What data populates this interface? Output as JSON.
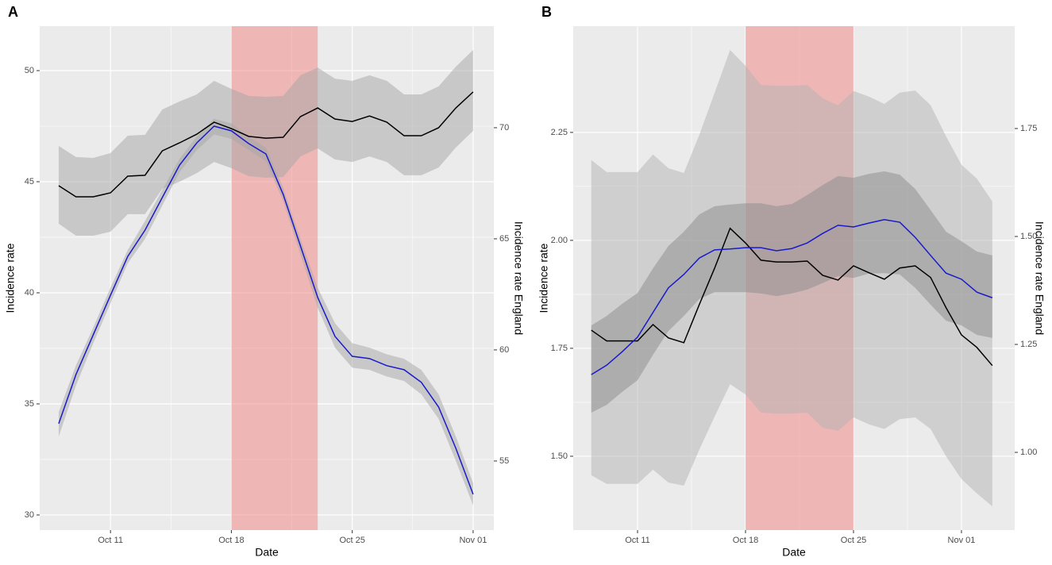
{
  "chart_data": [
    {
      "type": "line",
      "panel_label": "A",
      "xlabel": "Date",
      "ylabel": "Incidence rate",
      "y2label": "Incidence rate England",
      "x": [
        8,
        9,
        10,
        11,
        12,
        13,
        14,
        15,
        16,
        17,
        18,
        19,
        20,
        21,
        22,
        23,
        24,
        25,
        26,
        27,
        28,
        29,
        30,
        31,
        32
      ],
      "xlim": [
        6.9,
        33.2
      ],
      "xticks": [
        {
          "value": 11,
          "label": "Oct 11"
        },
        {
          "value": 18,
          "label": "Oct 18"
        },
        {
          "value": 25,
          "label": "Oct 25"
        },
        {
          "value": 32,
          "label": "Nov 01"
        }
      ],
      "ylim": [
        29.32,
        52.0
      ],
      "yticks": [
        30,
        35,
        40,
        45,
        50
      ],
      "y2lim": [
        51.89,
        74.57
      ],
      "y2ticks": [
        55,
        60,
        65,
        70
      ],
      "highlight": [
        18,
        23
      ],
      "highlight_color": "#f28b8b",
      "grid": true,
      "series": [
        {
          "color": "#000000",
          "band_color": "#a6a6a6",
          "values": [
            44.82,
            44.32,
            44.32,
            44.5,
            45.25,
            45.29,
            46.39,
            46.75,
            47.14,
            47.68,
            47.39,
            47.04,
            46.96,
            47.0,
            47.93,
            48.32,
            47.82,
            47.71,
            47.96,
            47.68,
            47.07,
            47.07,
            47.43,
            48.32,
            49.04
          ],
          "upper": [
            46.61,
            46.11,
            46.07,
            46.29,
            47.07,
            47.11,
            48.25,
            48.61,
            48.93,
            49.54,
            49.18,
            48.86,
            48.82,
            48.86,
            49.79,
            50.14,
            49.64,
            49.54,
            49.79,
            49.54,
            48.93,
            48.93,
            49.29,
            50.18,
            50.93
          ],
          "lower": [
            43.11,
            42.57,
            42.57,
            42.75,
            43.54,
            43.54,
            44.68,
            45.0,
            45.39,
            45.89,
            45.61,
            45.25,
            45.18,
            45.21,
            46.14,
            46.5,
            46.0,
            45.89,
            46.14,
            45.89,
            45.29,
            45.29,
            45.64,
            46.54,
            47.29
          ]
        },
        {
          "color": "#1a1acc",
          "band_color": "#a6a6a6",
          "axis": "y2",
          "values": [
            56.68,
            58.89,
            60.68,
            62.46,
            64.21,
            65.39,
            66.86,
            68.32,
            69.32,
            70.07,
            69.86,
            69.29,
            68.82,
            67.0,
            64.68,
            62.36,
            60.61,
            59.71,
            59.61,
            59.29,
            59.11,
            58.54,
            57.43,
            55.57,
            53.5
          ],
          "upper": [
            57.2,
            59.3,
            61.0,
            62.8,
            64.5,
            65.8,
            67.2,
            68.6,
            69.6,
            70.4,
            70.2,
            69.6,
            69.1,
            67.3,
            65.0,
            62.8,
            61.2,
            60.3,
            60.1,
            59.8,
            59.6,
            59.1,
            58.0,
            56.1,
            54.0
          ],
          "lower": [
            56.1,
            58.4,
            60.3,
            62.1,
            63.9,
            65.0,
            66.5,
            68.0,
            69.0,
            69.7,
            69.5,
            69.0,
            68.5,
            66.7,
            64.3,
            61.9,
            60.1,
            59.2,
            59.1,
            58.8,
            58.6,
            58.0,
            56.9,
            55.0,
            53.0
          ]
        }
      ]
    },
    {
      "type": "line",
      "panel_label": "B",
      "xlabel": "Date",
      "ylabel": "Incidence rate",
      "y2label": "Incidence rate England",
      "x": [
        8,
        9,
        10,
        11,
        12,
        13,
        14,
        15,
        16,
        17,
        18,
        19,
        20,
        21,
        22,
        23,
        24,
        25,
        26,
        27,
        28,
        29,
        30,
        31,
        32,
        33,
        34
      ],
      "xlim": [
        6.83,
        35.45
      ],
      "xticks": [
        {
          "value": 11,
          "label": "Oct 11"
        },
        {
          "value": 18,
          "label": "Oct 18"
        },
        {
          "value": 25,
          "label": "Oct 25"
        },
        {
          "value": 32,
          "label": "Nov 01"
        }
      ],
      "ylim": [
        1.329,
        2.496
      ],
      "yticks": [
        {
          "value": 1.5,
          "label": "1.50"
        },
        1.75,
        {
          "value": 2,
          "label": "2.00"
        },
        2.25
      ],
      "y2lim": [
        0.82,
        1.987
      ],
      "y2ticks": [
        {
          "value": 1,
          "label": "1.00"
        },
        1.25,
        {
          "value": 1.5,
          "label": "1.50"
        },
        1.75
      ],
      "highlight": [
        18,
        25
      ],
      "highlight_color": "#f28b8b",
      "grid": true,
      "series": [
        {
          "color": "#000000",
          "band_color": "#b3b3b3",
          "values": [
            1.792,
            1.767,
            1.767,
            1.767,
            1.805,
            1.774,
            1.763,
            1.851,
            1.936,
            2.028,
            1.994,
            1.954,
            1.95,
            1.95,
            1.952,
            1.919,
            1.908,
            1.941,
            1.925,
            1.91,
            1.936,
            1.941,
            1.914,
            1.844,
            1.781,
            1.752,
            1.71
          ],
          "upper": [
            2.186,
            2.158,
            2.158,
            2.158,
            2.199,
            2.167,
            2.156,
            2.244,
            2.342,
            2.441,
            2.404,
            2.36,
            2.358,
            2.358,
            2.36,
            2.329,
            2.313,
            2.346,
            2.333,
            2.316,
            2.342,
            2.347,
            2.313,
            2.241,
            2.175,
            2.143,
            2.09
          ],
          "lower": [
            1.456,
            1.436,
            1.436,
            1.436,
            1.469,
            1.439,
            1.432,
            1.515,
            1.592,
            1.667,
            1.643,
            1.601,
            1.599,
            1.599,
            1.601,
            1.566,
            1.559,
            1.59,
            1.574,
            1.563,
            1.586,
            1.59,
            1.563,
            1.5,
            1.447,
            1.414,
            1.384
          ]
        },
        {
          "color": "#1a1acc",
          "band_color": "#8c8c8c",
          "axis": "y2",
          "values": [
            1.18,
            1.202,
            1.233,
            1.267,
            1.324,
            1.381,
            1.412,
            1.45,
            1.469,
            1.471,
            1.474,
            1.474,
            1.467,
            1.472,
            1.485,
            1.507,
            1.526,
            1.522,
            1.531,
            1.539,
            1.533,
            1.498,
            1.456,
            1.415,
            1.401,
            1.371,
            1.358
          ],
          "upper": [
            1.294,
            1.316,
            1.344,
            1.369,
            1.426,
            1.478,
            1.511,
            1.551,
            1.57,
            1.574,
            1.577,
            1.577,
            1.57,
            1.575,
            1.596,
            1.619,
            1.64,
            1.636,
            1.645,
            1.651,
            1.643,
            1.61,
            1.561,
            1.511,
            1.489,
            1.465,
            1.456
          ],
          "lower": [
            1.092,
            1.11,
            1.14,
            1.167,
            1.226,
            1.281,
            1.316,
            1.355,
            1.371,
            1.371,
            1.371,
            1.368,
            1.362,
            1.368,
            1.377,
            1.392,
            1.408,
            1.404,
            1.414,
            1.415,
            1.412,
            1.381,
            1.342,
            1.305,
            1.294,
            1.272,
            1.265
          ]
        }
      ]
    }
  ]
}
